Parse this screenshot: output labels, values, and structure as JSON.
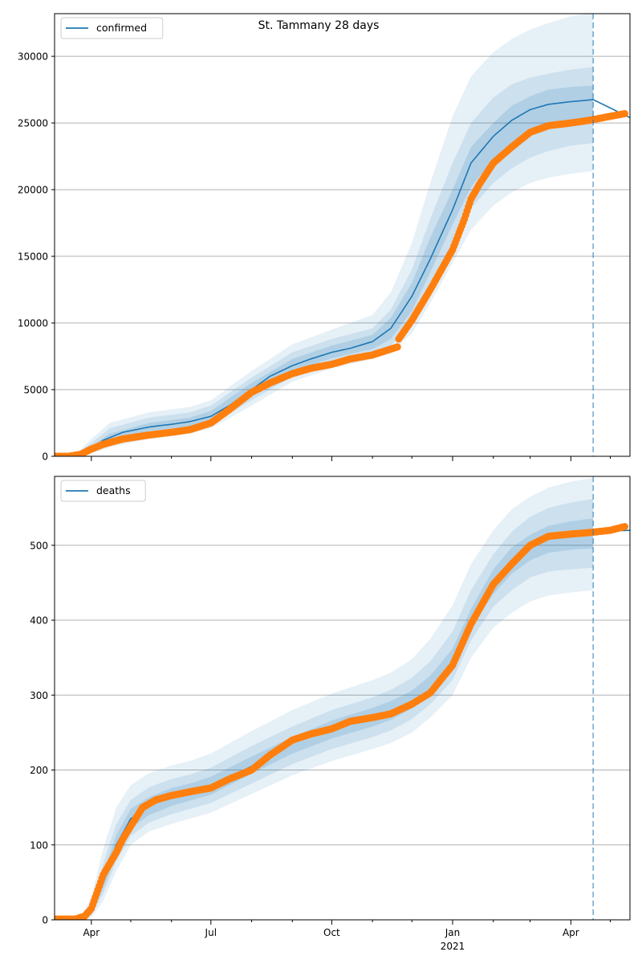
{
  "title": "St. Tammany 28 days",
  "colors": {
    "model_line": "#1f77b4",
    "band": "#1f77b4",
    "observed": "#ff7f0e",
    "forecast_line": "#1f77b4",
    "grid": "#b0b0b0"
  },
  "x_axis": {
    "tick_labels": [
      "Apr",
      "Jul",
      "Oct",
      "Jan",
      "Apr"
    ],
    "tick_dates": [
      "2020-04-01",
      "2020-07-01",
      "2020-10-01",
      "2021-01-01",
      "2021-04-01"
    ],
    "year_label": "2021",
    "minor_tick_dates": [
      "2020-05-01",
      "2020-06-01",
      "2020-08-01",
      "2020-09-01",
      "2020-11-01",
      "2020-12-01",
      "2021-02-01",
      "2021-03-01",
      "2021-05-01"
    ]
  },
  "chart_data": [
    {
      "type": "line",
      "legend": "confirmed",
      "legend_position": "upper left",
      "grid": "y",
      "xlim": [
        "2020-03-04",
        "2021-05-16"
      ],
      "ylim": [
        0,
        33200
      ],
      "yticks": [
        0,
        5000,
        10000,
        15000,
        20000,
        25000,
        30000
      ],
      "forecast_start": "2021-04-18",
      "model_series": {
        "name": "confirmed",
        "dates": [
          "2020-03-04",
          "2020-03-20",
          "2020-03-31",
          "2020-04-10",
          "2020-04-25",
          "2020-05-15",
          "2020-06-01",
          "2020-06-15",
          "2020-07-01",
          "2020-07-15",
          "2020-08-01",
          "2020-08-15",
          "2020-09-01",
          "2020-09-15",
          "2020-10-01",
          "2020-10-15",
          "2020-11-01",
          "2020-11-15",
          "2020-12-01",
          "2020-12-15",
          "2021-01-01",
          "2021-01-15",
          "2021-02-01",
          "2021-02-15",
          "2021-03-01",
          "2021-03-15",
          "2021-04-01",
          "2021-04-18",
          "2021-05-16"
        ],
        "values": [
          0,
          50,
          500,
          1200,
          1800,
          2200,
          2400,
          2600,
          3000,
          3800,
          5000,
          6000,
          6800,
          7300,
          7800,
          8100,
          8600,
          9600,
          12000,
          14800,
          18500,
          22000,
          24000,
          25200,
          26000,
          26400,
          26600,
          26750,
          25400
        ],
        "bands": {
          "dates": [
            "2020-03-20",
            "2020-04-01",
            "2020-04-15",
            "2020-05-15",
            "2020-06-15",
            "2020-07-01",
            "2020-08-01",
            "2020-09-01",
            "2020-10-01",
            "2020-11-01",
            "2020-11-15",
            "2020-12-01",
            "2020-12-15",
            "2021-01-01",
            "2021-01-15",
            "2021-02-01",
            "2021-02-15",
            "2021-03-01",
            "2021-03-15",
            "2021-04-01",
            "2021-04-18"
          ],
          "outer_low": [
            0,
            200,
            700,
            1300,
            1700,
            2100,
            3800,
            5600,
            6600,
            7300,
            7800,
            9200,
            11500,
            14500,
            17000,
            18800,
            19800,
            20500,
            20900,
            21200,
            21400
          ],
          "outer_high": [
            150,
            1300,
            2500,
            3300,
            3700,
            4200,
            6400,
            8400,
            9500,
            10600,
            12300,
            16000,
            20500,
            25500,
            28500,
            30300,
            31300,
            32000,
            32500,
            33000,
            33300
          ],
          "mid_low": [
            20,
            350,
            950,
            1600,
            2000,
            2400,
            4200,
            6000,
            7000,
            7700,
            8300,
            10000,
            12700,
            16000,
            18600,
            20500,
            21600,
            22400,
            22900,
            23300,
            23500
          ],
          "mid_high": [
            100,
            1000,
            2100,
            2900,
            3300,
            3800,
            5900,
            7800,
            8800,
            9600,
            11000,
            14000,
            17800,
            22000,
            25000,
            26900,
            27900,
            28400,
            28700,
            29000,
            29200
          ],
          "inner_low": [
            40,
            430,
            1200,
            1900,
            2250,
            2650,
            4550,
            6350,
            7350,
            8050,
            8800,
            10900,
            13800,
            17400,
            20200,
            22300,
            23400,
            24200,
            24700,
            25000,
            25200
          ],
          "inner_high": [
            80,
            750,
            1700,
            2500,
            2900,
            3400,
            5500,
            7300,
            8300,
            9100,
            10400,
            13000,
            16400,
            20000,
            23200,
            25000,
            26300,
            27000,
            27500,
            27700,
            27800
          ]
        }
      },
      "observed_series": {
        "name": "observed",
        "dates": [
          "2020-03-04",
          "2020-03-15",
          "2020-03-24",
          "2020-03-31",
          "2020-04-10",
          "2020-04-25",
          "2020-05-15",
          "2020-06-01",
          "2020-06-15",
          "2020-07-01",
          "2020-07-15",
          "2020-08-01",
          "2020-08-15",
          "2020-09-01",
          "2020-09-15",
          "2020-10-01",
          "2020-10-15",
          "2020-11-01",
          "2020-11-20",
          "2020-11-21",
          "2020-12-01",
          "2020-12-15",
          "2021-01-01",
          "2021-01-10",
          "2021-01-15",
          "2021-01-22",
          "2021-02-01",
          "2021-02-15",
          "2021-03-01",
          "2021-03-15",
          "2021-04-01",
          "2021-04-15",
          "2021-05-01",
          "2021-05-12"
        ],
        "values": [
          0,
          0,
          150,
          500,
          900,
          1300,
          1600,
          1800,
          2000,
          2500,
          3500,
          4800,
          5500,
          6200,
          6600,
          6900,
          7300,
          7600,
          8200,
          8800,
          10200,
          12500,
          15500,
          17800,
          19300,
          20500,
          22000,
          23200,
          24300,
          24800,
          25000,
          25200,
          25500,
          25700
        ]
      }
    },
    {
      "type": "line",
      "legend": "deaths",
      "legend_position": "upper left",
      "grid": "y",
      "xlim": [
        "2020-03-04",
        "2021-05-16"
      ],
      "ylim": [
        0,
        592
      ],
      "yticks": [
        0,
        100,
        200,
        300,
        400,
        500
      ],
      "forecast_start": "2021-04-18",
      "model_series": {
        "name": "deaths",
        "dates": [
          "2020-03-04",
          "2020-03-25",
          "2020-04-01",
          "2020-04-10",
          "2020-04-20",
          "2020-05-01",
          "2020-05-15",
          "2020-06-01",
          "2020-06-15",
          "2020-07-01",
          "2020-07-15",
          "2020-08-01",
          "2020-08-15",
          "2020-09-01",
          "2020-09-15",
          "2020-10-01",
          "2020-10-15",
          "2020-11-01",
          "2020-11-15",
          "2020-12-01",
          "2020-12-15",
          "2021-01-01",
          "2021-01-15",
          "2021-02-01",
          "2021-02-15",
          "2021-03-01",
          "2021-03-15",
          "2021-04-01",
          "2021-04-18",
          "2021-05-16"
        ],
        "values": [
          0,
          2,
          10,
          50,
          100,
          135,
          152,
          165,
          172,
          180,
          190,
          205,
          222,
          238,
          248,
          255,
          263,
          270,
          278,
          290,
          305,
          340,
          400,
          450,
          478,
          500,
          510,
          515,
          518,
          520
        ],
        "bands": {
          "dates": [
            "2020-03-25",
            "2020-04-01",
            "2020-04-10",
            "2020-04-20",
            "2020-05-01",
            "2020-05-15",
            "2020-06-01",
            "2020-06-15",
            "2020-07-01",
            "2020-08-01",
            "2020-09-01",
            "2020-10-01",
            "2020-11-01",
            "2020-11-15",
            "2020-12-01",
            "2020-12-15",
            "2021-01-01",
            "2021-01-15",
            "2021-02-01",
            "2021-02-15",
            "2021-03-01",
            "2021-03-15",
            "2021-04-01",
            "2021-04-18"
          ],
          "outer_low": [
            0,
            3,
            25,
            65,
            100,
            118,
            128,
            135,
            143,
            168,
            193,
            212,
            228,
            236,
            250,
            270,
            300,
            350,
            390,
            410,
            425,
            433,
            437,
            440
          ],
          "outer_high": [
            8,
            30,
            95,
            150,
            180,
            196,
            206,
            212,
            222,
            252,
            280,
            302,
            320,
            330,
            348,
            375,
            420,
            475,
            520,
            548,
            565,
            577,
            585,
            590
          ],
          "mid_low": [
            1,
            6,
            35,
            78,
            112,
            130,
            141,
            148,
            156,
            182,
            208,
            228,
            244,
            253,
            268,
            288,
            320,
            373,
            418,
            440,
            457,
            465,
            468,
            470
          ],
          "mid_high": [
            5,
            20,
            75,
            128,
            160,
            177,
            188,
            194,
            203,
            232,
            258,
            280,
            297,
            307,
            323,
            345,
            385,
            440,
            488,
            518,
            538,
            550,
            557,
            562
          ],
          "inner_low": [
            1.5,
            8,
            42,
            87,
            122,
            140,
            152,
            159,
            167,
            195,
            222,
            242,
            258,
            267,
            282,
            300,
            335,
            390,
            435,
            462,
            480,
            490,
            494,
            496
          ],
          "inner_high": [
            3.5,
            15,
            62,
            113,
            148,
            164,
            176,
            182,
            191,
            218,
            244,
            266,
            283,
            292,
            306,
            326,
            362,
            415,
            468,
            497,
            514,
            526,
            532,
            536
          ]
        }
      },
      "observed_series": {
        "name": "observed",
        "dates": [
          "2020-03-04",
          "2020-03-20",
          "2020-03-27",
          "2020-04-01",
          "2020-04-05",
          "2020-04-10",
          "2020-04-15",
          "2020-04-20",
          "2020-04-25",
          "2020-05-01",
          "2020-05-10",
          "2020-05-20",
          "2020-06-01",
          "2020-06-15",
          "2020-07-01",
          "2020-07-15",
          "2020-08-01",
          "2020-08-15",
          "2020-09-01",
          "2020-09-15",
          "2020-10-01",
          "2020-10-15",
          "2020-11-01",
          "2020-11-15",
          "2020-12-01",
          "2020-12-15",
          "2021-01-01",
          "2021-01-15",
          "2021-02-01",
          "2021-02-15",
          "2021-03-01",
          "2021-03-15",
          "2021-04-01",
          "2021-04-15",
          "2021-05-01",
          "2021-05-12"
        ],
        "values": [
          1,
          1,
          5,
          15,
          35,
          60,
          75,
          90,
          108,
          125,
          150,
          160,
          166,
          171,
          176,
          188,
          200,
          220,
          240,
          248,
          255,
          265,
          270,
          275,
          288,
          303,
          340,
          395,
          448,
          475,
          500,
          512,
          515,
          517,
          520,
          525
        ]
      }
    }
  ]
}
